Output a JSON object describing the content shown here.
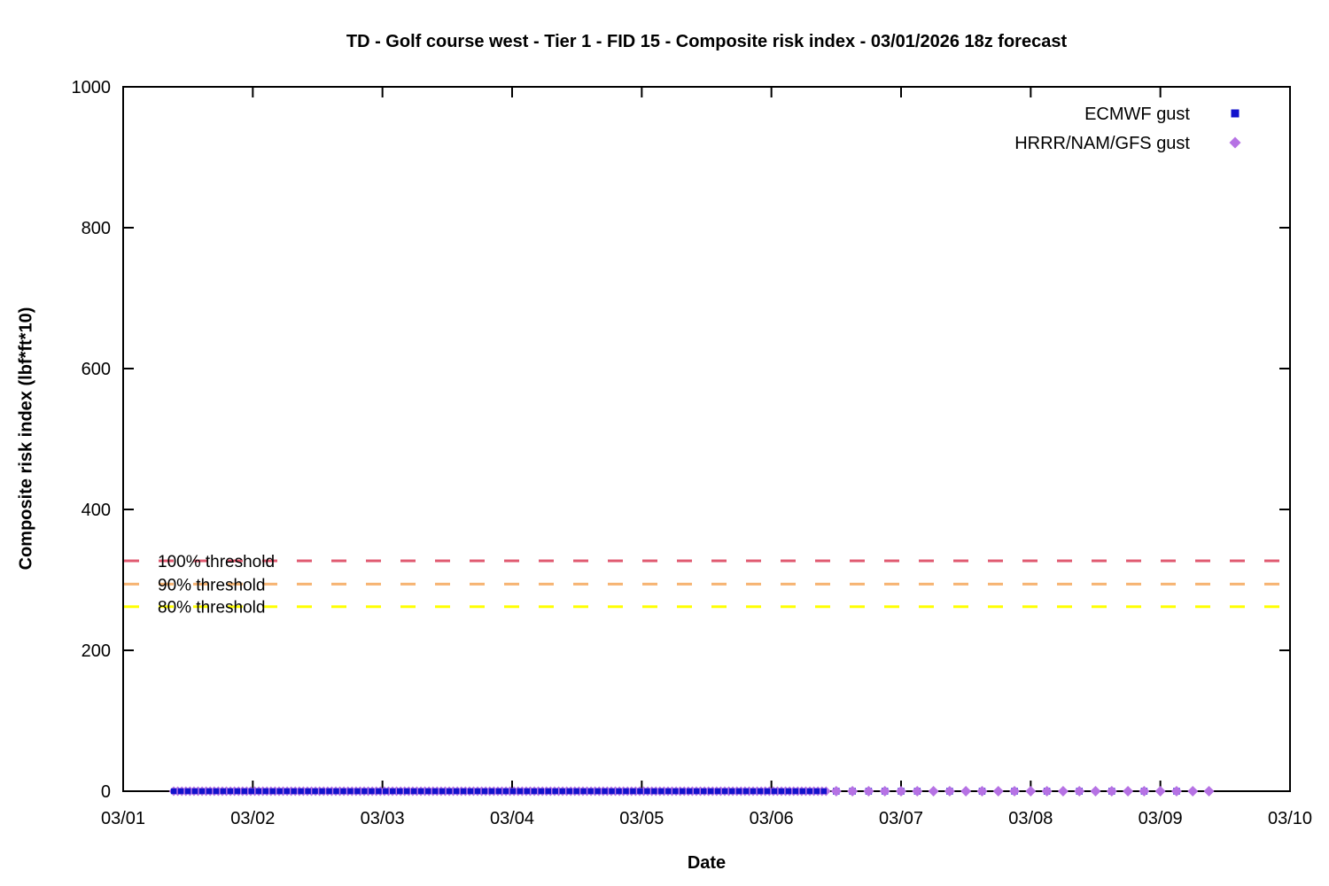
{
  "chart_data": {
    "type": "scatter",
    "title": "TD - Golf course west - Tier 1 - FID 15 - Composite risk index - 03/01/2026 18z forecast",
    "x_axis": {
      "label": "Date",
      "tick_labels": [
        "03/01",
        "03/02",
        "03/03",
        "03/04",
        "03/05",
        "03/06",
        "03/07",
        "03/08",
        "03/09",
        "03/10"
      ]
    },
    "y_axis": {
      "label": "Composite risk index (lbf*ft*10)",
      "range": [
        0,
        1000
      ],
      "ticks": [
        0,
        200,
        400,
        600,
        800,
        1000
      ]
    },
    "grid": false,
    "legend_position": "top-right",
    "legend": [
      {
        "id": "ecmwf",
        "label": "ECMWF gust",
        "marker": "square",
        "color": "#1212cc"
      },
      {
        "id": "hrrr",
        "label": "HRRR/NAM/GFS gust",
        "marker": "diamond",
        "color": "#b672e4"
      }
    ],
    "thresholds": [
      {
        "label": "100% threshold",
        "value": 327,
        "color": "#e05a70",
        "style": "dashed"
      },
      {
        "label": "90% threshold",
        "value": 294,
        "color": "#f6b26f",
        "style": "dashed"
      },
      {
        "label": "80% threshold",
        "value": 262,
        "color": "#ffff00",
        "style": "dashed"
      }
    ],
    "series": [
      {
        "id": "ecmwf",
        "name": "ECMWF gust",
        "marker": "square",
        "color": "#1212cc",
        "y_value": 0,
        "segments": [
          {
            "start_day": 0.39,
            "end_day": 5.4275,
            "step_day": 0.0545,
            "size": 6.5,
            "zorder": 2
          },
          {
            "start_day": 5.5,
            "end_day": 6.125,
            "step_day": 0.125,
            "size": 7.5,
            "zorder": 3
          },
          {
            "start_day": 6.375,
            "end_day": 8.125,
            "step_day": 0.25,
            "size": 7.5,
            "zorder": 3
          }
        ]
      },
      {
        "id": "hrrr",
        "name": "HRRR/NAM/GFS gust",
        "marker": "diamond",
        "color": "#b672e4",
        "y_value": 0,
        "segments": [
          {
            "start_day": 0.39,
            "end_day": 5.44,
            "step_day": 0.03125,
            "size": 5.5,
            "zorder": 1
          },
          {
            "start_day": 5.5,
            "end_day": 8.375,
            "step_day": 0.125,
            "size": 6.0,
            "zorder": 4
          }
        ]
      }
    ]
  }
}
